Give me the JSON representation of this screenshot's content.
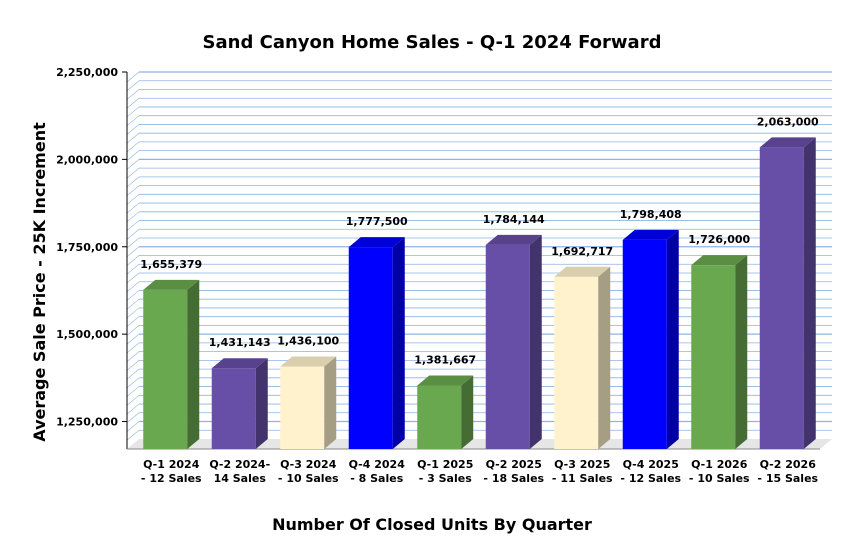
{
  "chart_data": {
    "type": "bar",
    "title": "Sand Canyon Home Sales - Q-1 2024 Forward",
    "xlabel": "Number Of Closed Units By Quarter",
    "ylabel": "Average Sale Price - 25K Increment",
    "ylim": [
      1200000,
      2250000
    ],
    "yticks": [
      1250000,
      1500000,
      1750000,
      2000000,
      2250000
    ],
    "ytick_labels": [
      "1,250,000",
      "1,500,000",
      "1,750,000",
      "2,000,000",
      "2,250,000"
    ],
    "minor_grid_step": 25000,
    "grid": true,
    "categories": [
      [
        "Q-1 2024",
        "- 12 Sales"
      ],
      [
        "Q-2 2024-",
        "14 Sales"
      ],
      [
        "Q-3 2024",
        "- 10 Sales"
      ],
      [
        "Q-4 2024",
        "- 8 Sales"
      ],
      [
        "Q-1 2025",
        "- 3 Sales"
      ],
      [
        "Q-2 2025",
        "- 18 Sales"
      ],
      [
        "Q-3 2025",
        "- 11 Sales"
      ],
      [
        "Q-4 2025",
        "- 12 Sales"
      ],
      [
        "Q-1 2026",
        "- 10 Sales"
      ],
      [
        "Q-2 2026",
        "- 15 Sales"
      ]
    ],
    "values": [
      1655379,
      1431143,
      1436100,
      1777500,
      1381667,
      1784144,
      1692717,
      1798408,
      1726000,
      2063000
    ],
    "value_labels": [
      "1,655,379",
      "1,431,143",
      "1,436,100",
      "1,777,500",
      "1,381,667",
      "1,784,144",
      "1,692,717",
      "1,798,408",
      "1,726,000",
      "2,063,000"
    ],
    "bar_colors": [
      "#6aa84f",
      "#674ea7",
      "#fff2cc",
      "#0000ff",
      "#6aa84f",
      "#674ea7",
      "#fff2cc",
      "#0000ff",
      "#6aa84f",
      "#674ea7"
    ],
    "grid_color": "#8eb4e3",
    "floor_color": "#e6e6e6"
  }
}
